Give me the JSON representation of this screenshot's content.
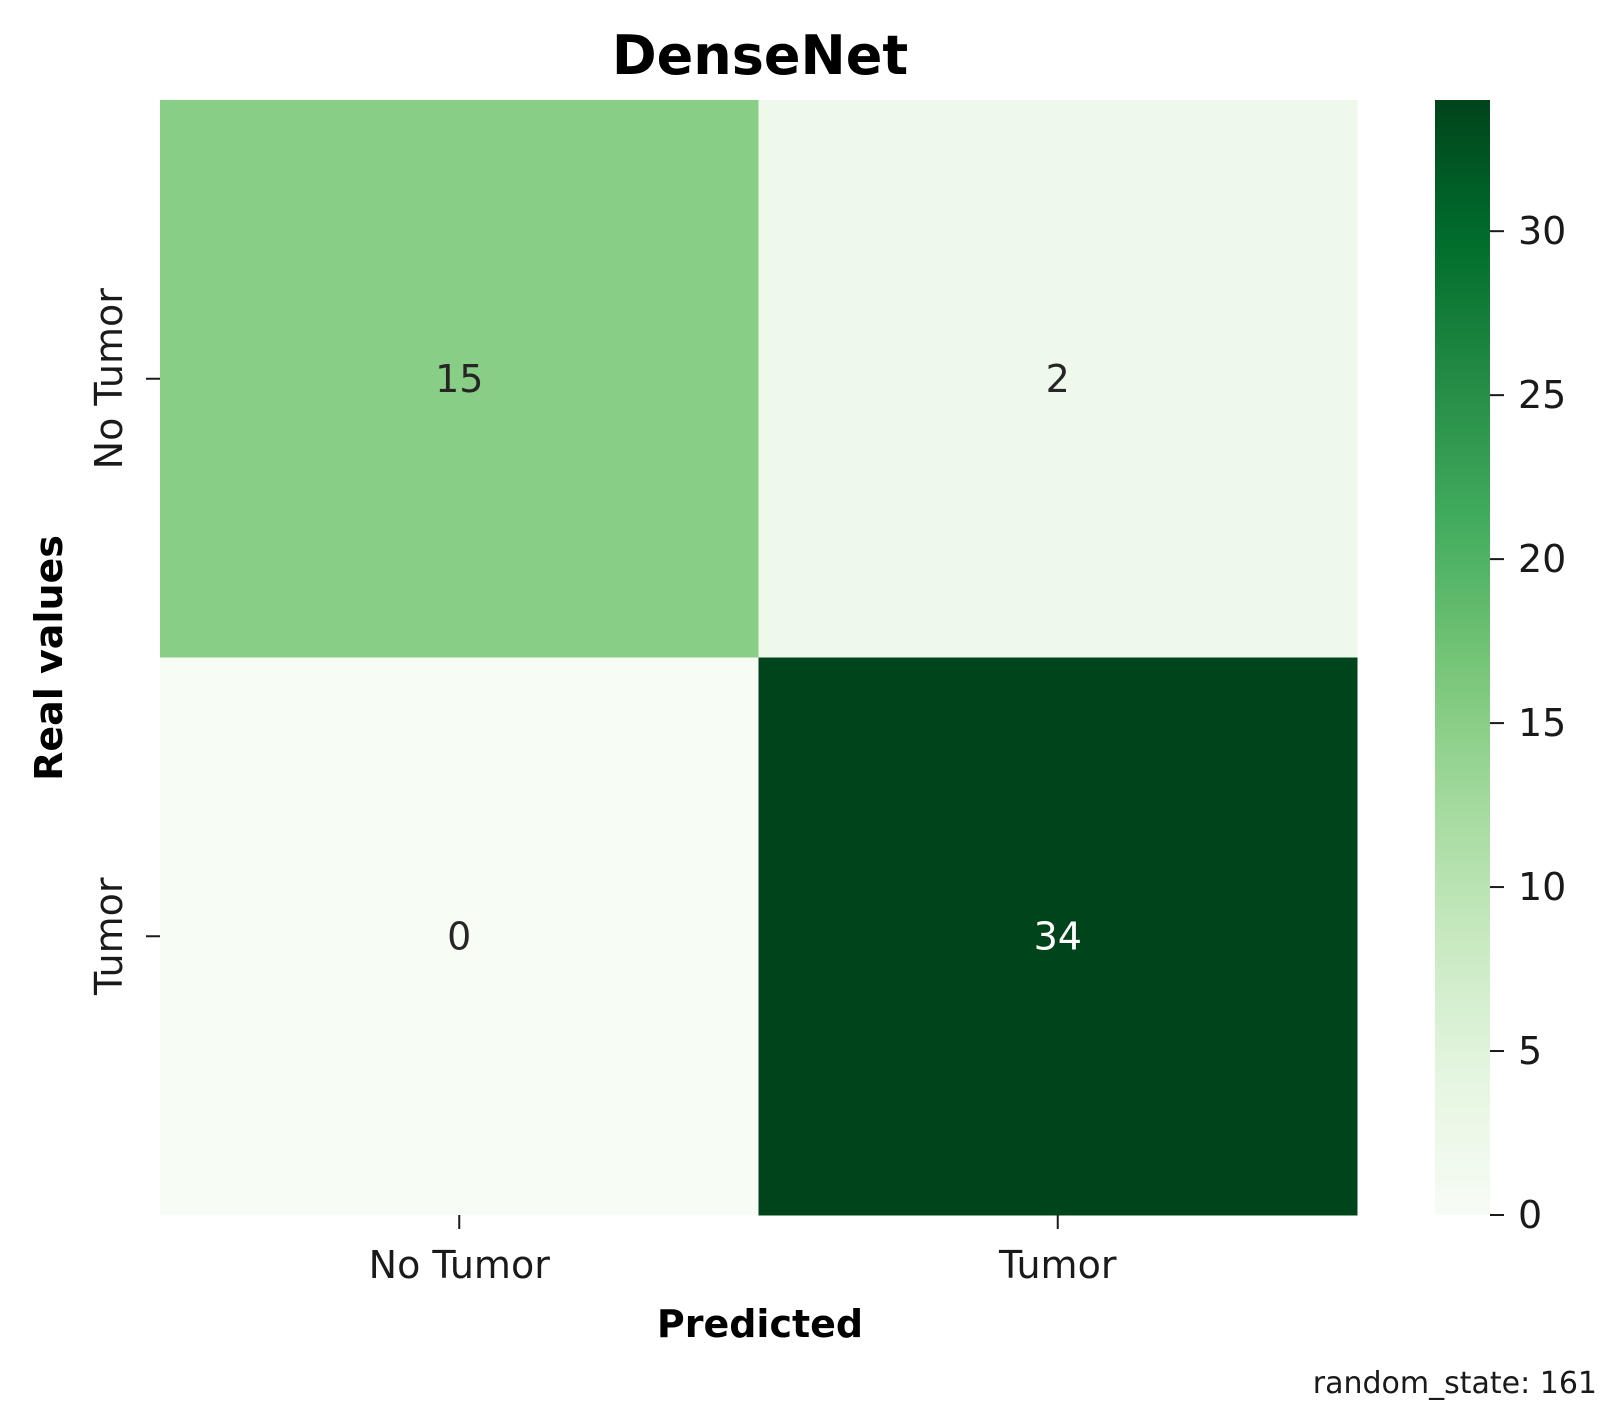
{
  "chart_data": {
    "type": "heatmap",
    "title": "DenseNet",
    "xlabel": "Predicted",
    "ylabel": "Real values",
    "x_categories": [
      "No Tumor",
      "Tumor"
    ],
    "y_categories": [
      "No Tumor",
      "Tumor"
    ],
    "values": [
      [
        15,
        2
      ],
      [
        0,
        34
      ]
    ],
    "colormap": "Greens",
    "colorbar": {
      "range": [
        0,
        34
      ],
      "ticks": [
        0,
        5,
        10,
        15,
        20,
        25,
        30
      ],
      "tick_labels": [
        "0",
        "5",
        "10",
        "15",
        "20",
        "25",
        "30"
      ]
    },
    "grid": false,
    "annotation": "random_state: 161"
  }
}
